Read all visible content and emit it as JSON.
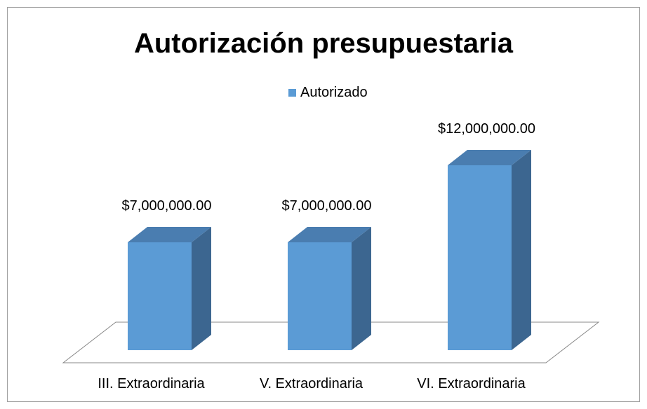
{
  "chart_data": {
    "type": "bar3d",
    "title": "Autorización presupuestaria",
    "categories": [
      "III. Extraordinaria",
      "V. Extraordinaria",
      "VI. Extraordinaria"
    ],
    "series": [
      {
        "name": "Autorizado",
        "color": "#5b9bd5",
        "values": [
          7000000,
          7000000,
          12000000
        ],
        "value_labels": [
          "$7,000,000.00",
          "$7,000,000.00",
          "$12,000,000.00"
        ]
      }
    ]
  }
}
